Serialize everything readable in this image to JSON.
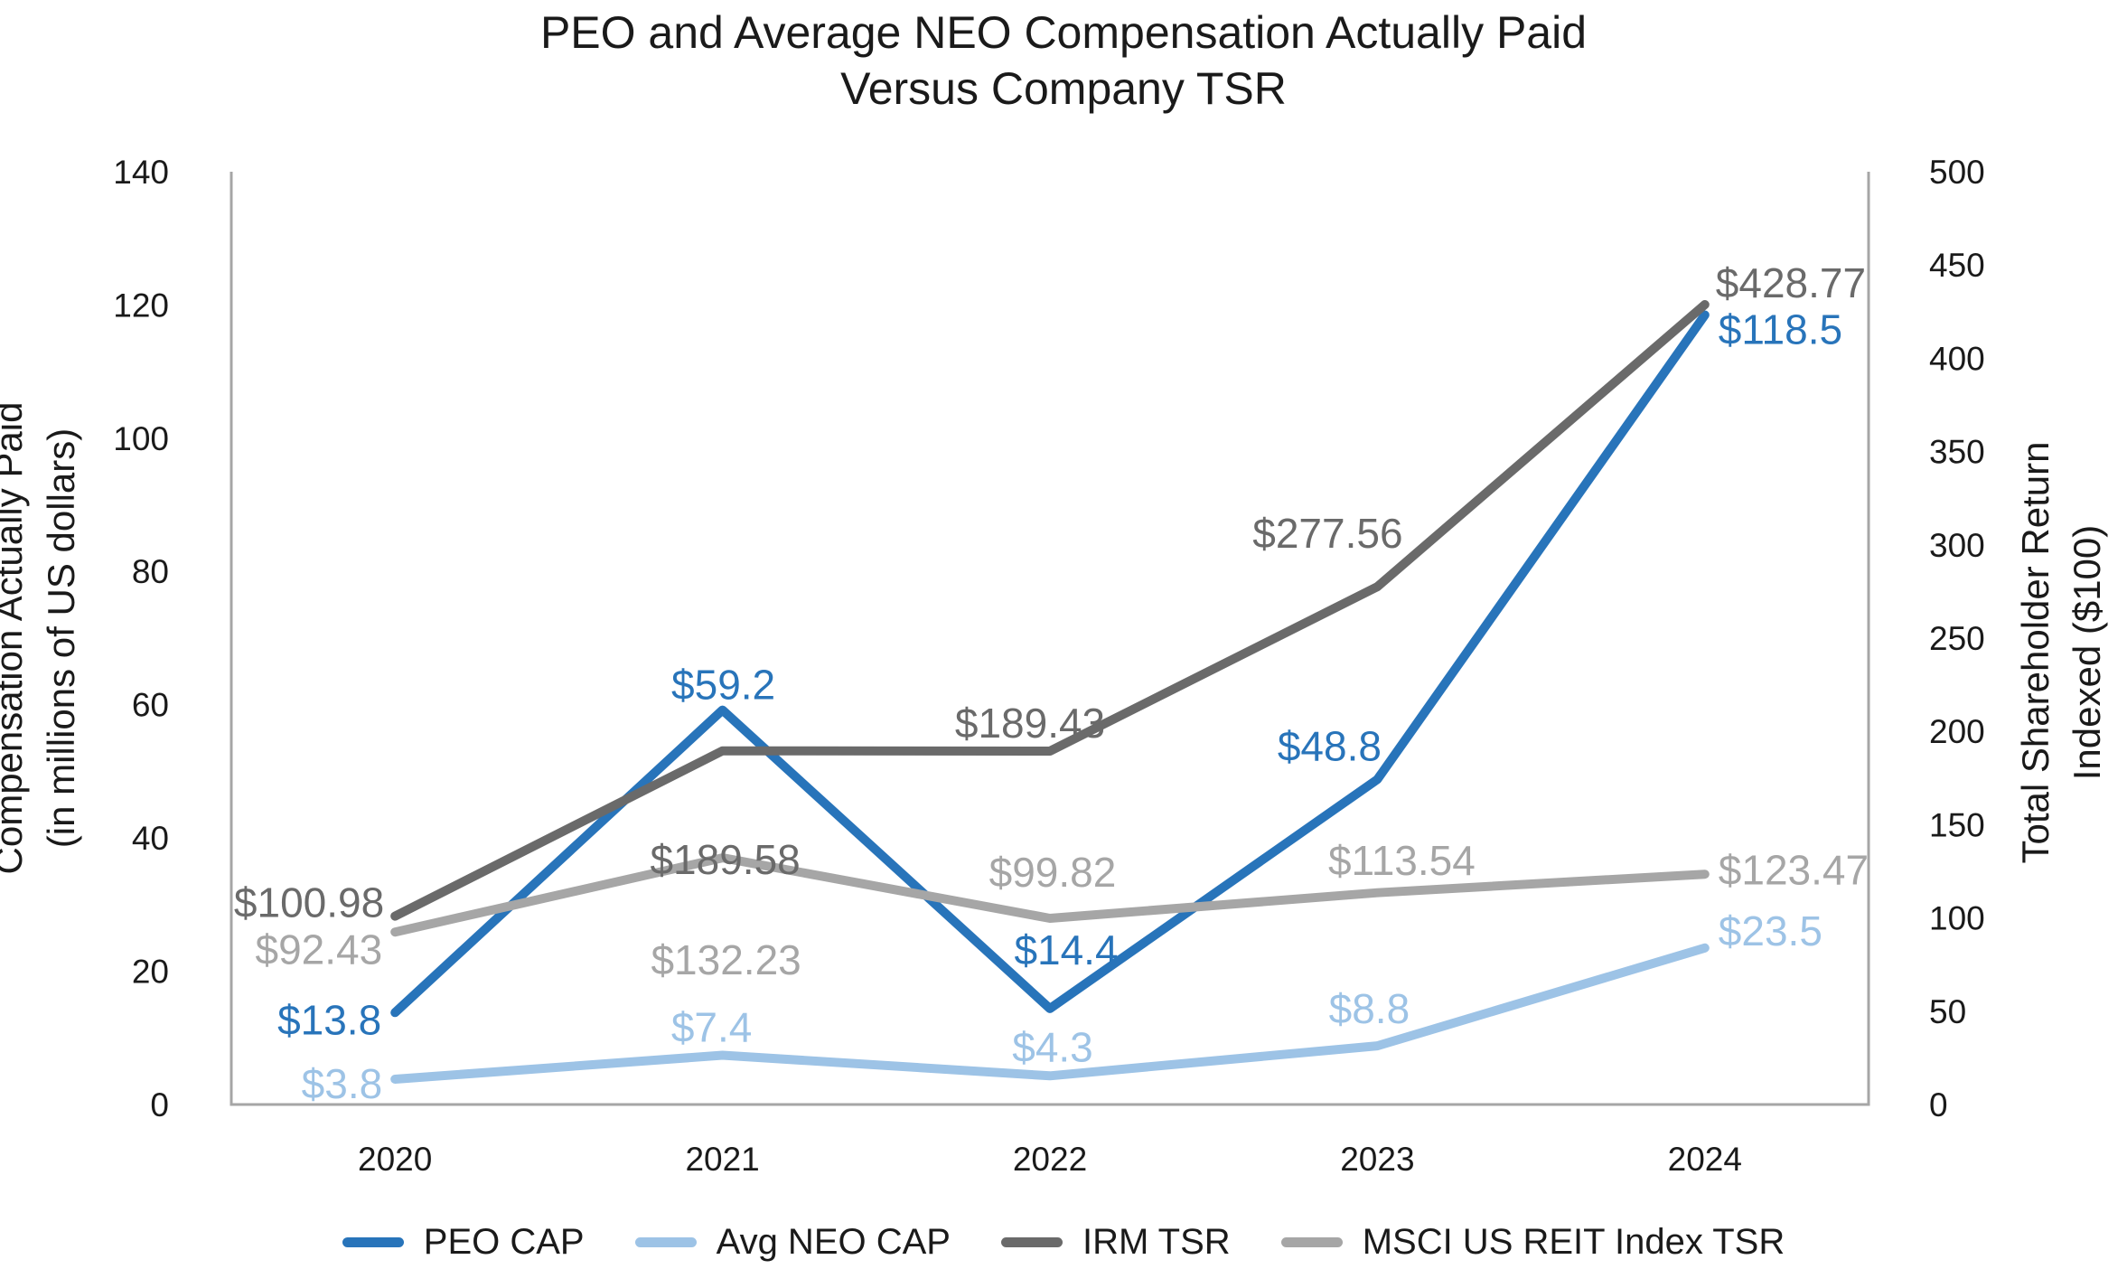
{
  "title": {
    "line1": "PEO and Average NEO Compensation Actually Paid",
    "line2": "Versus Company TSR"
  },
  "left_axis": {
    "title_line1": "Compensation Actually Paid",
    "title_line2": "(in millions of US dollars)",
    "min": 0,
    "max": 140,
    "step": 20,
    "tick_labels": [
      "0",
      "20",
      "40",
      "60",
      "80",
      "100",
      "120",
      "140"
    ]
  },
  "right_axis": {
    "title_line1": "Total Shareholder Return",
    "title_line2": "Indexed ($100)",
    "min": 0,
    "max": 500,
    "step": 50,
    "tick_labels": [
      "0",
      "50",
      "100",
      "150",
      "200",
      "250",
      "300",
      "350",
      "400",
      "450",
      "500"
    ]
  },
  "colors": {
    "peo_cap": "#2874BA",
    "avg_neo_cap": "#9DC3E6",
    "irm_tsr": "#6A6A6A",
    "msci_tsr": "#A6A6A6",
    "axis_line": "#A6A6A6",
    "text": "#1a1a1a"
  },
  "chart_data": {
    "type": "line",
    "title": "PEO and Average NEO Compensation Actually Paid Versus Company TSR",
    "categories": [
      "2020",
      "2021",
      "2022",
      "2023",
      "2024"
    ],
    "grid": false,
    "legend_position": "bottom",
    "left_ylim": [
      0,
      140
    ],
    "right_ylim": [
      0,
      500
    ],
    "series": [
      {
        "name": "PEO CAP",
        "axis": "left",
        "color": "#2874BA",
        "values": [
          13.8,
          59.2,
          14.4,
          48.8,
          118.5
        ],
        "labels": [
          "$13.8",
          "$59.2",
          "$14.4",
          "$48.8",
          "$118.5"
        ]
      },
      {
        "name": "Avg NEO CAP",
        "axis": "left",
        "color": "#9DC3E6",
        "values": [
          3.8,
          7.4,
          4.3,
          8.8,
          23.5
        ],
        "labels": [
          "$3.8",
          "$7.4",
          "$4.3",
          "$8.8",
          "$23.5"
        ]
      },
      {
        "name": "IRM TSR",
        "axis": "right",
        "color": "#6A6A6A",
        "values": [
          100.98,
          189.58,
          189.43,
          277.56,
          428.77
        ],
        "labels": [
          "$100.98",
          "$189.58",
          "$189.43",
          "$277.56",
          "$428.77"
        ]
      },
      {
        "name": "MSCI US REIT Index TSR",
        "axis": "right",
        "color": "#A6A6A6",
        "values": [
          92.43,
          132.23,
          99.82,
          113.54,
          123.47
        ],
        "labels": [
          "$92.43",
          "$132.23",
          "$99.82",
          "$113.54",
          "$123.47"
        ]
      }
    ]
  }
}
